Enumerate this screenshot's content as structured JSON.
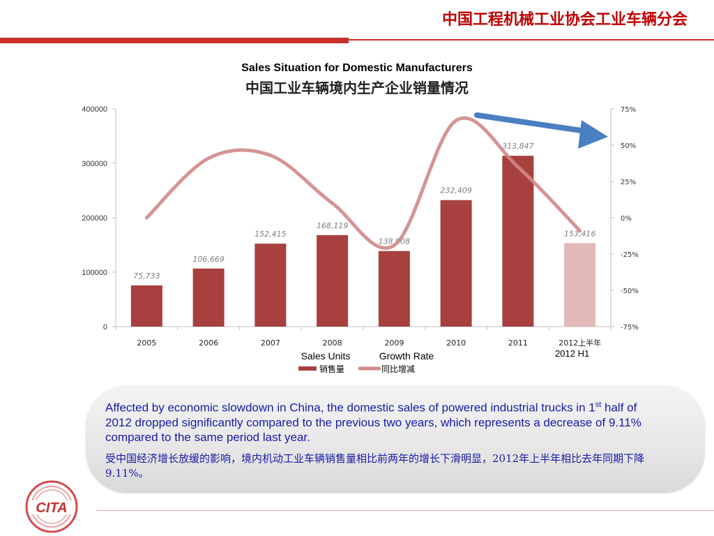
{
  "header": {
    "title": "中国工程机械工业协会工业车辆分会"
  },
  "chart_data": {
    "type": "bar+line",
    "title": "Sales Situation for Domestic Manufacturers",
    "subtitle": "中国工业车辆境内生产企业销量情况",
    "categories": [
      "2005",
      "2006",
      "2007",
      "2008",
      "2009",
      "2010",
      "2011",
      "2012上半年"
    ],
    "category_note": "2012 H1",
    "left_axis": {
      "ylim": [
        0,
        400000
      ],
      "ticks": [
        "0",
        "100000",
        "200000",
        "300000",
        "400000"
      ]
    },
    "right_axis": {
      "ylim": [
        -75,
        75
      ],
      "unit": "%",
      "ticks": [
        "-75%",
        "-50%",
        "-25%",
        "0%",
        "25%",
        "50%",
        "75%"
      ]
    },
    "series": [
      {
        "name": "销售量",
        "name_en": "Sales Units",
        "type": "bar",
        "axis": "left",
        "values": [
          75733,
          106669,
          152415,
          168119,
          138908,
          232409,
          313847,
          153416
        ],
        "labels": [
          "75,733",
          "106,669",
          "152,415",
          "168,119",
          "138,908",
          "232,409",
          "313,847",
          "153,416"
        ],
        "color": "#a84040",
        "highlight_color": "#e2b9b9"
      },
      {
        "name": "同比增减",
        "name_en": "Growth Rate",
        "type": "line",
        "axis": "right",
        "values": [
          0,
          41,
          43,
          10,
          -19,
          67,
          35,
          -9
        ],
        "color": "#d08a8a"
      }
    ],
    "legend_position": "bottom",
    "grid": false
  },
  "callout": {
    "en_before_sup": "Affected by economic slowdown in China, the domestic sales of powered industrial trucks in 1",
    "en_sup": "st",
    "en_after_sup": " half of 2012 dropped significantly compared to the previous two years, which represents a decrease of 9.11% compared to the same period last year.",
    "cn": "受中国经济增长放缓的影响，境内机动工业车辆销售量相比前两年的增长下滑明显，2012年上半年相比去年同期下降9.11%。"
  },
  "logo": {
    "text": "CITA"
  },
  "colors": {
    "brand_red": "#c9302c",
    "callout_text": "#1a1aa8",
    "arrow_blue": "#4a7fc1"
  }
}
